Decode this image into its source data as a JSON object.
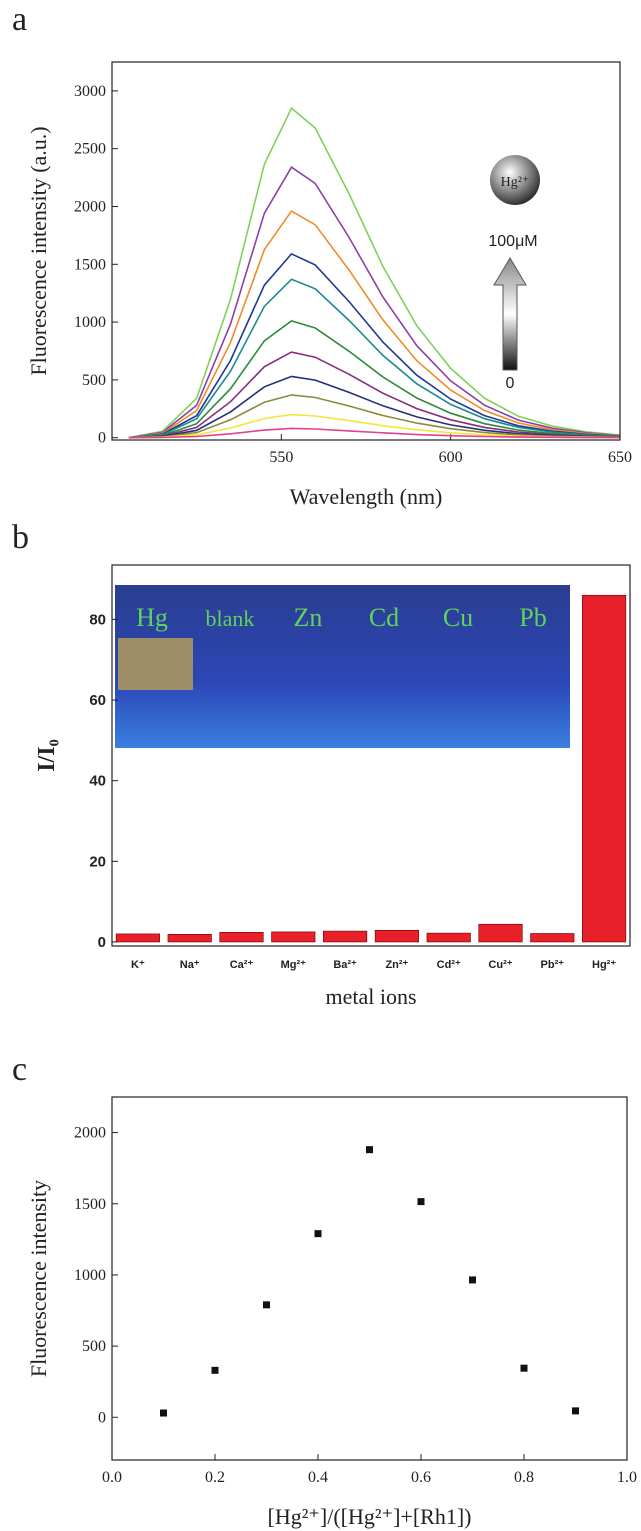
{
  "chart_data": [
    {
      "type": "line",
      "panel_label": "a",
      "x_label": "Wavelength (nm)",
      "y_label": "Fluorescence intensity (a.u.)",
      "annotations": [
        "Hg²⁺",
        "100μM",
        "0"
      ],
      "xlim": [
        500,
        650
      ],
      "xticks": [
        550,
        600,
        650
      ],
      "ylim": [
        -20,
        3250
      ],
      "yticks": [
        0,
        500,
        1000,
        1500,
        2000,
        2500,
        3000
      ],
      "x": [
        505,
        515,
        525,
        535,
        545,
        553,
        560,
        570,
        580,
        590,
        600,
        610,
        620,
        630,
        640,
        650
      ],
      "series": [
        {
          "color": "#7fd15a",
          "values": [
            0,
            57,
            342,
            1197,
            2366,
            2850,
            2679,
            2109,
            1482,
            969,
            599,
            342,
            185,
            100,
            51,
            23
          ]
        },
        {
          "color": "#8e3fa8",
          "values": [
            0,
            47,
            281,
            983,
            1942,
            2340,
            2200,
            1732,
            1217,
            796,
            491,
            281,
            152,
            82,
            42,
            19
          ]
        },
        {
          "color": "#f28a2a",
          "values": [
            0,
            39,
            235,
            823,
            1627,
            1960,
            1842,
            1450,
            1019,
            666,
            412,
            235,
            127,
            69,
            35,
            16
          ]
        },
        {
          "color": "#1f3a93",
          "values": [
            0,
            32,
            191,
            668,
            1320,
            1590,
            1495,
            1177,
            827,
            541,
            334,
            191,
            103,
            56,
            29,
            13
          ]
        },
        {
          "color": "#1b8a8f",
          "values": [
            0,
            27,
            164,
            575,
            1137,
            1370,
            1288,
            1014,
            712,
            466,
            288,
            164,
            89,
            48,
            25,
            11
          ]
        },
        {
          "color": "#2e8b3a",
          "values": [
            0,
            20,
            121,
            424,
            838,
            1010,
            949,
            747,
            525,
            343,
            212,
            121,
            66,
            35,
            18,
            8
          ]
        },
        {
          "color": "#8a2b7f",
          "values": [
            0,
            15,
            89,
            311,
            614,
            740,
            696,
            548,
            385,
            252,
            155,
            89,
            48,
            26,
            13,
            6
          ]
        },
        {
          "color": "#23307a",
          "values": [
            0,
            11,
            64,
            223,
            440,
            530,
            498,
            392,
            276,
            180,
            111,
            64,
            34,
            19,
            10,
            4
          ]
        },
        {
          "color": "#8d8a3a",
          "values": [
            0,
            7,
            44,
            155,
            307,
            370,
            348,
            274,
            192,
            126,
            78,
            44,
            24,
            13,
            7,
            3
          ]
        },
        {
          "color": "#f2e63a",
          "values": [
            0,
            4,
            24,
            84,
            166,
            200,
            188,
            148,
            104,
            68,
            42,
            24,
            13,
            7,
            4,
            2
          ]
        },
        {
          "color": "#e0408f",
          "values": [
            0,
            2,
            10,
            34,
            66,
            80,
            75,
            59,
            42,
            27,
            17,
            10,
            5,
            3,
            1,
            1
          ]
        }
      ]
    },
    {
      "type": "bar",
      "panel_label": "b",
      "x_label": "metal ions",
      "y_label": "I/I₀",
      "inset_labels": [
        "Hg",
        "blank",
        "Zn",
        "Cd",
        "Cu",
        "Pb"
      ],
      "categories": [
        "K⁺",
        "Na⁺",
        "Ca²⁺",
        "Mg²⁺",
        "Ba²⁺",
        "Zn²⁺",
        "Cd²⁺",
        "Cu²⁺",
        "Pb²⁺",
        "Hg²⁺"
      ],
      "values": [
        2,
        1.9,
        2.4,
        2.5,
        2.7,
        2.9,
        2.2,
        4.4,
        2.1,
        86
      ],
      "color": "#e8202a",
      "ylim": [
        -1,
        93.5
      ],
      "yticks": [
        0,
        20,
        40,
        60,
        80
      ]
    },
    {
      "type": "scatter",
      "panel_label": "c",
      "x_label": "[Hg²⁺]/([Hg²⁺]+[Rh1])",
      "y_label": "Fluorescence intensity",
      "x": [
        0.1,
        0.2,
        0.3,
        0.4,
        0.5,
        0.6,
        0.7,
        0.8,
        0.9
      ],
      "values": [
        30,
        330,
        790,
        1290,
        1880,
        1515,
        965,
        345,
        45
      ],
      "color": "#111111",
      "xlim": [
        0,
        1
      ],
      "xticks": [
        {
          "value": 0,
          "label": "0.0"
        },
        0.2,
        0.4,
        0.6,
        0.8,
        {
          "value": 1,
          "label": "1.0"
        }
      ],
      "ylim": [
        -300,
        2250
      ],
      "yticks": [
        0,
        500,
        1000,
        1500,
        2000
      ]
    }
  ]
}
